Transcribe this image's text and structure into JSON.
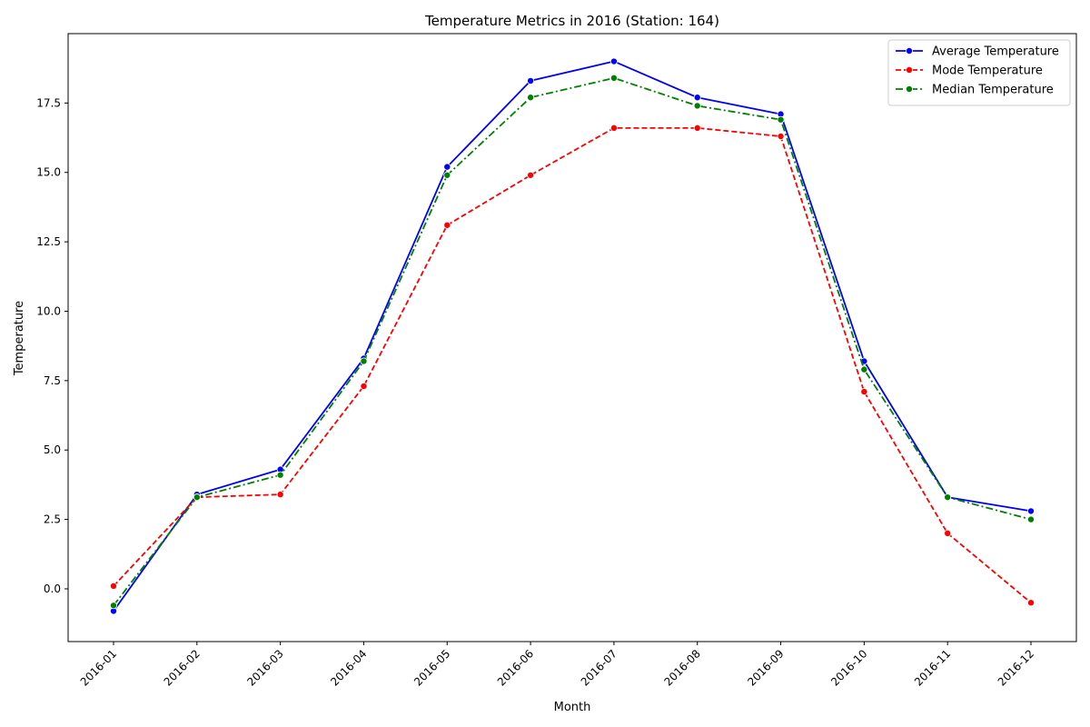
{
  "chart_data": {
    "type": "line",
    "title": "Temperature Metrics in 2016 (Station: 164)",
    "xlabel": "Month",
    "ylabel": "Temperature",
    "categories": [
      "2016-01",
      "2016-02",
      "2016-03",
      "2016-04",
      "2016-05",
      "2016-06",
      "2016-07",
      "2016-08",
      "2016-09",
      "2016-10",
      "2016-11",
      "2016-12"
    ],
    "ylim": [
      -1.9,
      20.0
    ],
    "yticks": [
      0.0,
      2.5,
      5.0,
      7.5,
      10.0,
      12.5,
      15.0,
      17.5
    ],
    "ytick_labels": [
      "0.0",
      "2.5",
      "5.0",
      "7.5",
      "10.0",
      "12.5",
      "15.0",
      "17.5"
    ],
    "grid": false,
    "legend_position": "top-right",
    "series": [
      {
        "name": "Average Temperature",
        "color": "#0000ff",
        "style": "solid",
        "values": [
          -0.8,
          3.4,
          4.3,
          8.3,
          15.2,
          18.3,
          19.0,
          17.7,
          17.1,
          8.2,
          3.3,
          2.8
        ]
      },
      {
        "name": "Mode Temperature",
        "color": "#ff0000",
        "style": "dashed",
        "values": [
          0.1,
          3.3,
          3.4,
          7.3,
          13.1,
          14.9,
          16.6,
          16.6,
          16.3,
          7.1,
          2.0,
          -0.5
        ]
      },
      {
        "name": "Median Temperature",
        "color": "#008000",
        "style": "dashdot",
        "values": [
          -0.6,
          3.3,
          4.1,
          8.2,
          14.9,
          17.7,
          18.4,
          17.4,
          16.9,
          7.9,
          3.3,
          2.5
        ]
      }
    ]
  }
}
